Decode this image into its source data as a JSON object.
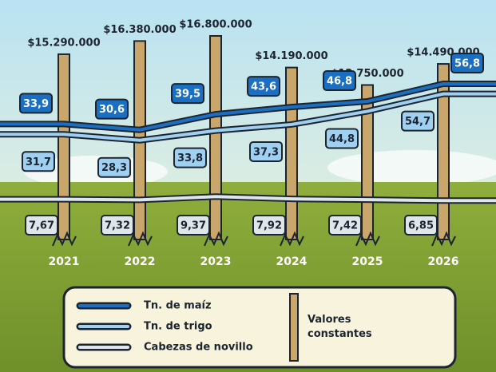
{
  "chart_data": {
    "type": "line",
    "categories": [
      "2021",
      "2022",
      "2023",
      "2024",
      "2025",
      "2026"
    ],
    "posts": {
      "name": "Valores constantes",
      "color": "#c9a66b",
      "values": [
        15290000,
        16380000,
        16800000,
        14190000,
        12750000,
        14490000
      ],
      "value_labels": [
        "$15.290.000",
        "$16.380.000",
        "$16.800.000",
        "$14.190.000",
        "$12.750.000",
        "$14.490.000"
      ]
    },
    "series": [
      {
        "name": "Tn. de maíz",
        "color": "#1b6fc2",
        "values": [
          33.9,
          30.6,
          39.5,
          43.6,
          46.8,
          56.8
        ],
        "value_labels": [
          "33,9",
          "30,6",
          "39,5",
          "43,6",
          "46,8",
          "56,8"
        ]
      },
      {
        "name": "Tn. de trigo",
        "color": "#9fd0f2",
        "values": [
          31.7,
          28.3,
          33.8,
          37.3,
          44.8,
          54.7
        ],
        "value_labels": [
          "31,7",
          "28,3",
          "33,8",
          "37,3",
          "44,8",
          "54,7"
        ]
      },
      {
        "name": "Cabezas de novillo",
        "color": "#dfe6ea",
        "values": [
          7.67,
          7.32,
          9.37,
          7.92,
          7.42,
          6.85
        ],
        "value_labels": [
          "7,67",
          "7,32",
          "9,37",
          "7,92",
          "7,42",
          "6,85"
        ]
      }
    ]
  }
}
